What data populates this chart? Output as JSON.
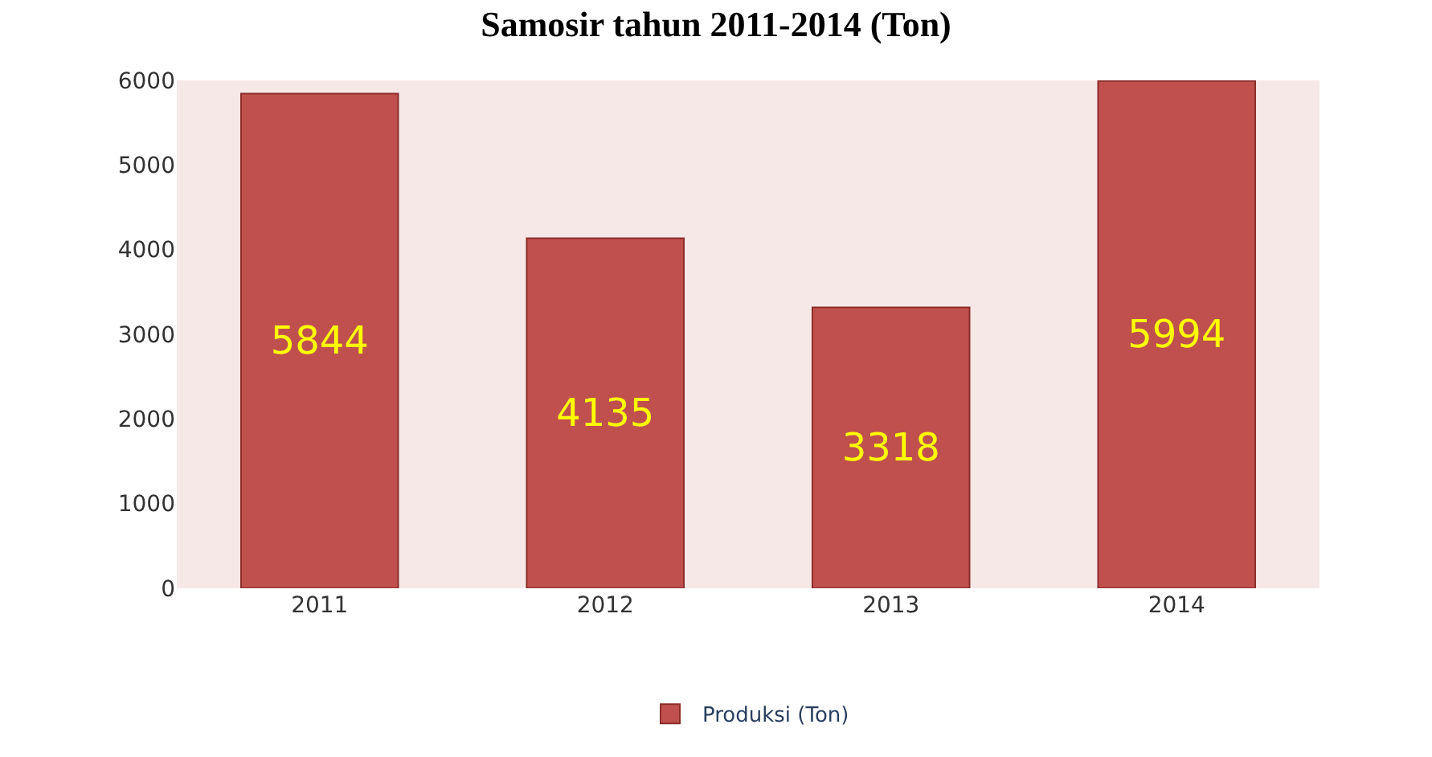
{
  "chart_data": {
    "type": "bar",
    "title": "Samosir tahun 2011-2014 (Ton)",
    "categories": [
      "2011",
      "2012",
      "2013",
      "2014"
    ],
    "series": [
      {
        "name": "Produksi (Ton)",
        "color": "#c0504d",
        "values": [
          5844,
          4135,
          3318,
          5994
        ]
      }
    ],
    "ylim": [
      0,
      6000
    ],
    "yticks": [
      0,
      1000,
      2000,
      3000,
      4000,
      5000,
      6000
    ],
    "data_labels": true,
    "grid": false,
    "legend": "bottom"
  }
}
